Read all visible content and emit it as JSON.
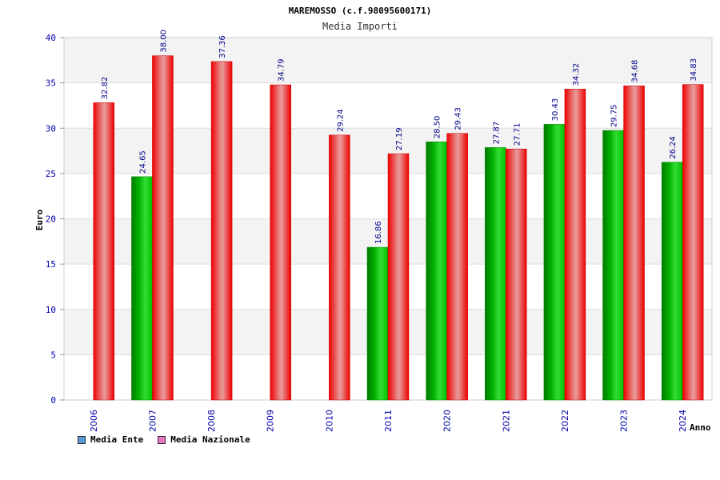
{
  "chart_data": {
    "type": "bar",
    "title": "MAREMOSSO (c.f.98095600171)",
    "subtitle": "Media Importi",
    "xlabel": "Anno",
    "ylabel": "Euro",
    "ylim": [
      0,
      40
    ],
    "yticks": [
      0,
      5,
      10,
      15,
      20,
      25,
      30,
      35,
      40
    ],
    "categories": [
      "2006",
      "2007",
      "2008",
      "2009",
      "2010",
      "2011",
      "2020",
      "2021",
      "2022",
      "2023",
      "2024"
    ],
    "series": [
      {
        "name": "Media Ente",
        "color": "#00bb00",
        "values": [
          null,
          24.65,
          null,
          null,
          null,
          16.86,
          28.5,
          27.87,
          30.43,
          29.75,
          26.24
        ],
        "labels": [
          null,
          "24.65",
          null,
          null,
          null,
          "16.86",
          "28.50",
          "27.87",
          "30.43",
          "29.75",
          "26.24"
        ]
      },
      {
        "name": "Media Nazionale",
        "color": "#ee1111",
        "values": [
          32.82,
          38.0,
          37.36,
          34.79,
          29.24,
          27.19,
          29.43,
          27.71,
          34.32,
          34.68,
          34.83
        ],
        "labels": [
          "32.82",
          "38.00",
          "37.36",
          "34.79",
          "29.24",
          "27.19",
          "29.43",
          "27.71",
          "34.32",
          "34.68",
          "34.83"
        ]
      }
    ],
    "legend": {
      "placement": "bottom-left",
      "items": [
        {
          "label": "Media Ente",
          "color": "#5b9bd5"
        },
        {
          "label": "Media Nazionale",
          "color": "#e377c2"
        }
      ]
    },
    "grid": true
  }
}
